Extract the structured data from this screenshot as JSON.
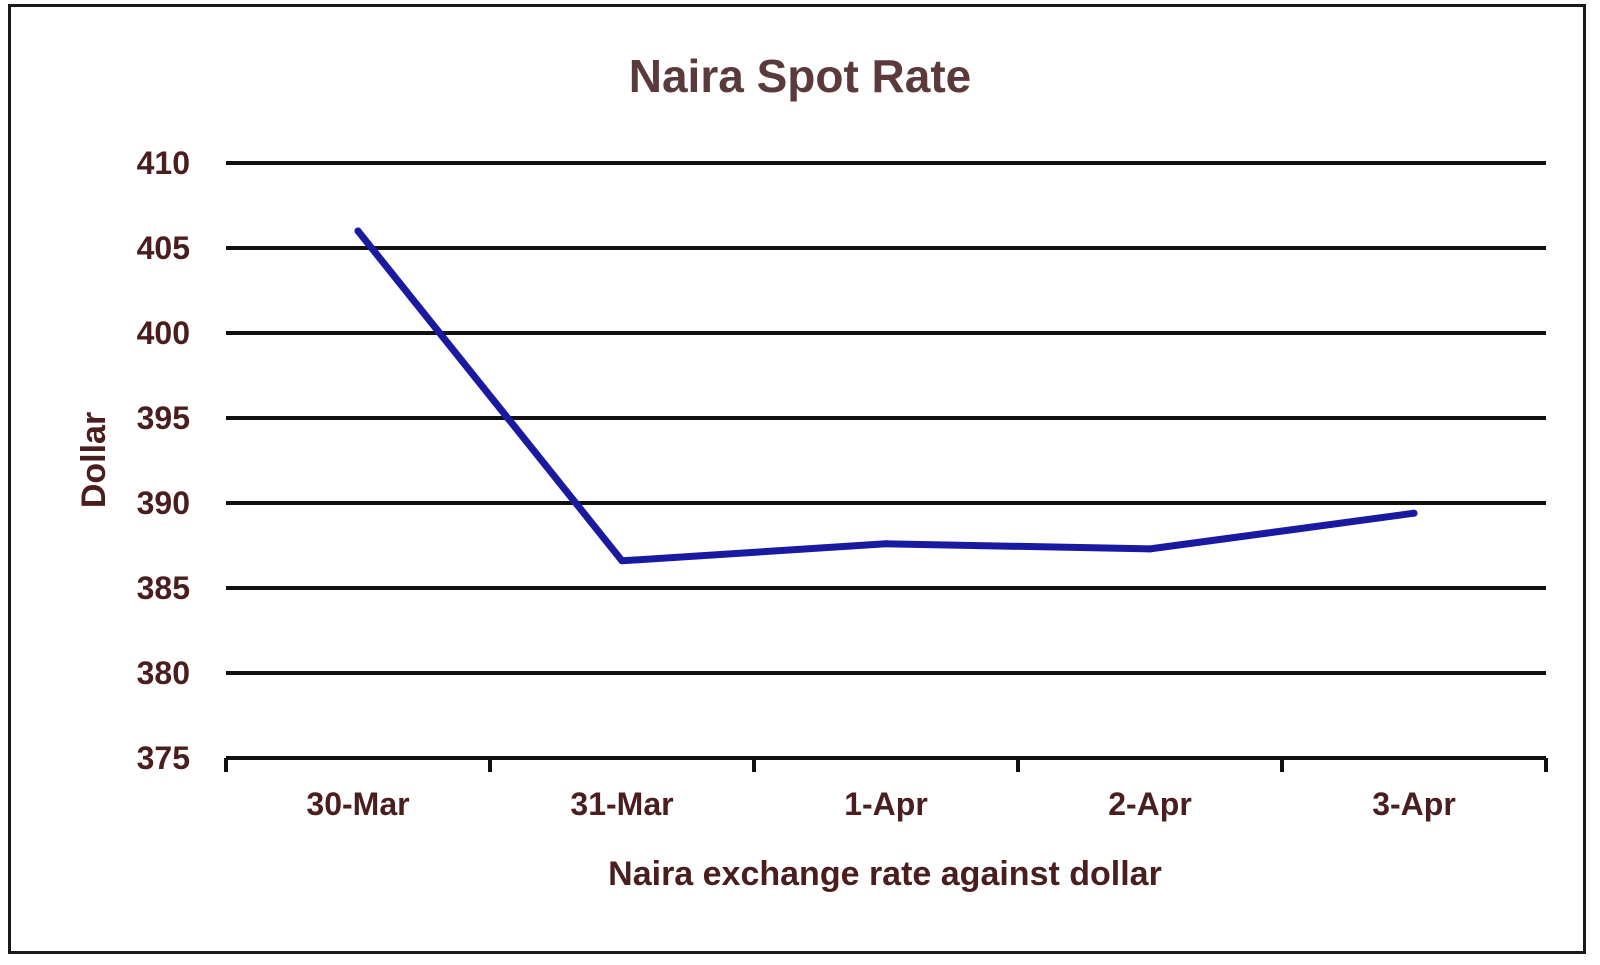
{
  "chart_data": {
    "type": "line",
    "title": "Naira Spot Rate",
    "xlabel": "Naira exchange rate against dollar",
    "ylabel": "Dollar",
    "categories": [
      "30-Mar",
      "31-Mar",
      "1-Apr",
      "2-Apr",
      "3-Apr"
    ],
    "series": [
      {
        "values": [
          406,
          386.6,
          387.6,
          387.3,
          389.4
        ],
        "color": "#1a1aa0"
      }
    ],
    "ylim": [
      375,
      410
    ],
    "yticks": [
      "375",
      "380",
      "385",
      "390",
      "395",
      "400",
      "405",
      "410"
    ],
    "grid": true,
    "legend": "none"
  }
}
